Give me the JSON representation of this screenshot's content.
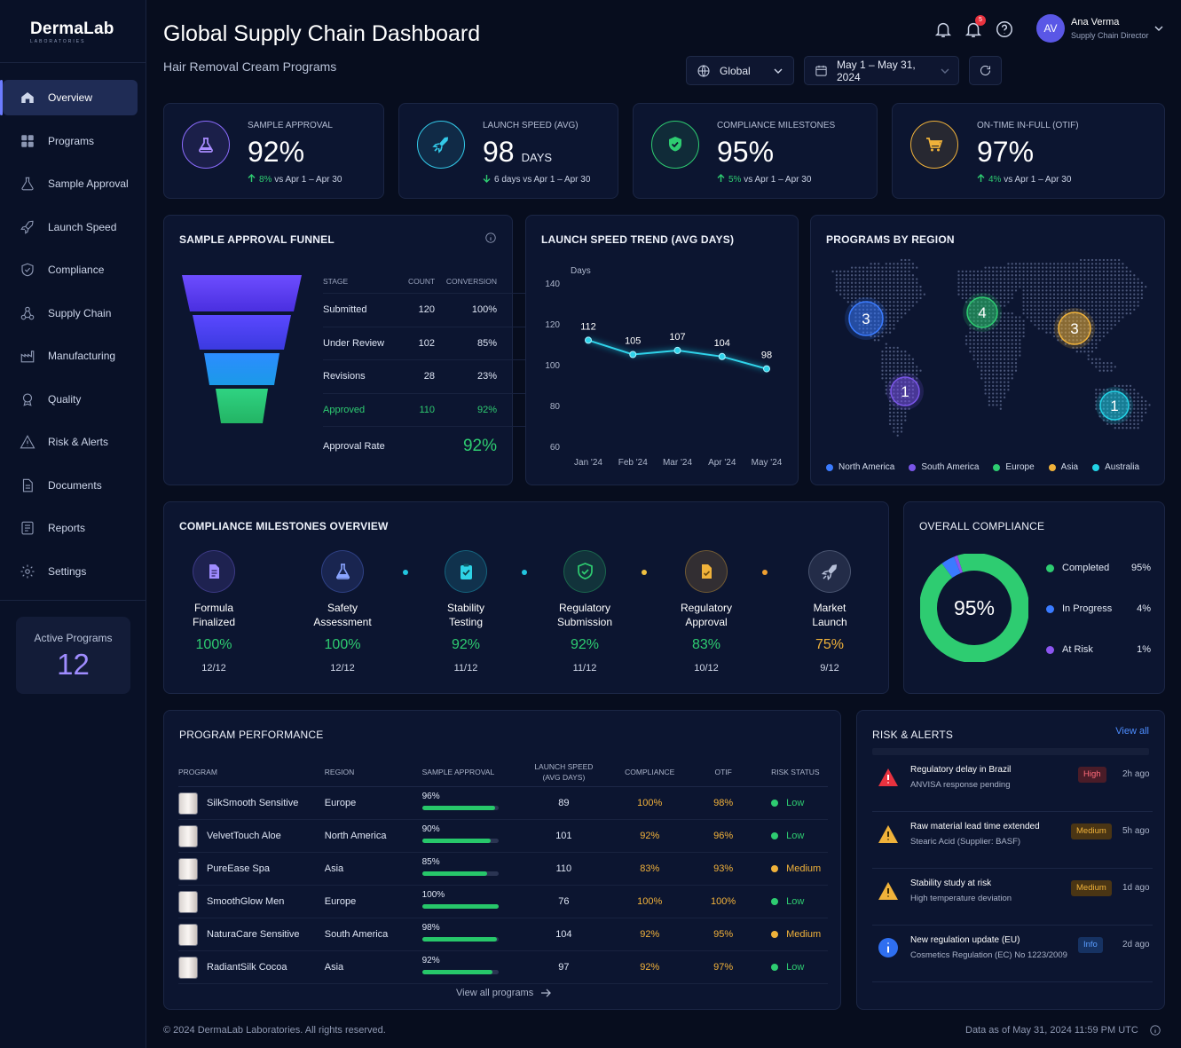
{
  "brand": {
    "name": "DermaLab",
    "sub": "LABORATORIES"
  },
  "nav": [
    {
      "label": "Overview",
      "icon": "home-icon"
    },
    {
      "label": "Programs",
      "icon": "grid-icon"
    },
    {
      "label": "Sample Approval",
      "icon": "flask-icon"
    },
    {
      "label": "Launch Speed",
      "icon": "rocket-icon"
    },
    {
      "label": "Compliance",
      "icon": "shield-icon"
    },
    {
      "label": "Supply Chain",
      "icon": "network-icon"
    },
    {
      "label": "Manufacturing",
      "icon": "factory-icon"
    },
    {
      "label": "Quality",
      "icon": "badge-icon"
    },
    {
      "label": "Risk & Alerts",
      "icon": "warning-icon"
    },
    {
      "label": "Documents",
      "icon": "document-icon"
    },
    {
      "label": "Reports",
      "icon": "report-icon"
    },
    {
      "label": "Settings",
      "icon": "gear-icon"
    }
  ],
  "active_programs": {
    "label": "Active Programs",
    "value": "12"
  },
  "header": {
    "title": "Global Supply Chain Dashboard",
    "subtitle": "Hair Removal Cream Programs",
    "notification_count": "5",
    "user_initials": "AV",
    "user_name": "Ana Verma",
    "user_role": "Supply Chain Director",
    "region": "Global",
    "date_range": "May 1 – May 31, 2024"
  },
  "kpis": [
    {
      "label": "SAMPLE APPROVAL",
      "value": "92%",
      "unit": "",
      "delta": "8%",
      "delta_text": "vs Apr 1 – Apr 30",
      "direction": "up",
      "color": "#8c6cff"
    },
    {
      "label": "LAUNCH SPEED (AVG)",
      "value": "98",
      "unit": "DAYS",
      "delta": "6 days",
      "delta_text": "vs Apr 1 – Apr 30",
      "direction": "down",
      "color": "#33c9e8"
    },
    {
      "label": "COMPLIANCE MILESTONES",
      "value": "95%",
      "unit": "",
      "delta": "5%",
      "delta_text": "vs Apr 1 – Apr 30",
      "direction": "up",
      "color": "#2ecc71"
    },
    {
      "label": "ON-TIME IN-FULL (OTIF)",
      "value": "97%",
      "unit": "",
      "delta": "4%",
      "delta_text": "vs Apr 1 – Apr 30",
      "direction": "up",
      "color": "#f0b23a"
    }
  ],
  "funnel": {
    "title": "SAMPLE APPROVAL FUNNEL",
    "headers": [
      "STAGE",
      "COUNT",
      "CONVERSION"
    ],
    "rows": [
      {
        "stage": "Submitted",
        "count": "120",
        "conv": "100%"
      },
      {
        "stage": "Under Review",
        "count": "102",
        "conv": "85%"
      },
      {
        "stage": "Revisions",
        "count": "28",
        "conv": "23%"
      },
      {
        "stage": "Approved",
        "count": "110",
        "conv": "92%"
      }
    ],
    "rate_label": "Approval Rate",
    "rate": "92%"
  },
  "trend": {
    "title": "LAUNCH SPEED TREND (AVG DAYS)",
    "ylabel": "Days"
  },
  "chart_data": {
    "type": "line",
    "title": "LAUNCH SPEED TREND (AVG DAYS)",
    "ylabel": "Days",
    "categories": [
      "Jan '24",
      "Feb '24",
      "Mar '24",
      "Apr '24",
      "May '24"
    ],
    "values": [
      112,
      105,
      107,
      104,
      98
    ],
    "ylim": [
      60,
      140
    ],
    "yticks": [
      60,
      80,
      100,
      120,
      140
    ]
  },
  "regions": {
    "title": "PROGRAMS BY REGION",
    "items": [
      {
        "name": "North America",
        "count": "3",
        "color": "#3a7bff"
      },
      {
        "name": "South America",
        "count": "1",
        "color": "#7a55e8"
      },
      {
        "name": "Europe",
        "count": "4",
        "color": "#2ecc71"
      },
      {
        "name": "Asia",
        "count": "3",
        "color": "#f0b23a"
      },
      {
        "name": "Australia",
        "count": "1",
        "color": "#22d3e6"
      }
    ]
  },
  "milestones": {
    "title": "COMPLIANCE MILESTONES OVERVIEW",
    "items": [
      {
        "name1": "Formula",
        "name2": "Finalized",
        "pct": "100%",
        "count": "12/12",
        "color": "#2ecc71",
        "icon": "document-icon"
      },
      {
        "name1": "Safety",
        "name2": "Assessment",
        "pct": "100%",
        "count": "12/12",
        "color": "#2ecc71",
        "icon": "flask-icon"
      },
      {
        "name1": "Stability",
        "name2": "Testing",
        "pct": "92%",
        "count": "11/12",
        "color": "#2ecc71",
        "icon": "clipboard-icon"
      },
      {
        "name1": "Regulatory",
        "name2": "Submission",
        "pct": "92%",
        "count": "11/12",
        "color": "#2ecc71",
        "icon": "shield-icon"
      },
      {
        "name1": "Regulatory",
        "name2": "Approval",
        "pct": "83%",
        "count": "10/12",
        "color": "#2ecc71",
        "icon": "file-check-icon"
      },
      {
        "name1": "Market",
        "name2": "Launch",
        "pct": "75%",
        "count": "9/12",
        "color": "#f0b23a",
        "icon": "rocket-icon"
      }
    ]
  },
  "overall": {
    "title": "OVERALL COMPLIANCE",
    "center": "95%",
    "items": [
      {
        "label": "Completed",
        "value": "95%",
        "color": "#2ecc71"
      },
      {
        "label": "In Progress",
        "value": "4%",
        "color": "#3a7bff"
      },
      {
        "label": "At Risk",
        "value": "1%",
        "color": "#8c55f0"
      }
    ]
  },
  "performance": {
    "title": "PROGRAM PERFORMANCE",
    "headers": [
      "PROGRAM",
      "REGION",
      "SAMPLE APPROVAL",
      "LAUNCH SPEED (AVG DAYS)",
      "COMPLIANCE",
      "OTIF",
      "RISK STATUS"
    ],
    "rows": [
      {
        "program": "SilkSmooth Sensitive",
        "region": "Europe",
        "approval": "96%",
        "approval_frac": 0.96,
        "speed": "89",
        "compliance": "100%",
        "otif": "98%",
        "risk": "Low"
      },
      {
        "program": "VelvetTouch Aloe",
        "region": "North America",
        "approval": "90%",
        "approval_frac": 0.9,
        "speed": "101",
        "compliance": "92%",
        "otif": "96%",
        "risk": "Low"
      },
      {
        "program": "PureEase Spa",
        "region": "Asia",
        "approval": "85%",
        "approval_frac": 0.85,
        "speed": "110",
        "compliance": "83%",
        "otif": "93%",
        "risk": "Medium"
      },
      {
        "program": "SmoothGlow Men",
        "region": "Europe",
        "approval": "100%",
        "approval_frac": 1.0,
        "speed": "76",
        "compliance": "100%",
        "otif": "100%",
        "risk": "Low"
      },
      {
        "program": "NaturaCare Sensitive",
        "region": "South America",
        "approval": "98%",
        "approval_frac": 0.98,
        "speed": "104",
        "compliance": "92%",
        "otif": "95%",
        "risk": "Medium"
      },
      {
        "program": "RadiantSilk Cocoa",
        "region": "Asia",
        "approval": "92%",
        "approval_frac": 0.92,
        "speed": "97",
        "compliance": "92%",
        "otif": "97%",
        "risk": "Low"
      }
    ],
    "view_all": "View all programs"
  },
  "alerts": {
    "title": "RISK & ALERTS",
    "view_all": "View all",
    "items": [
      {
        "title": "Regulatory delay in Brazil",
        "sub": "ANVISA response pending",
        "tag": "High",
        "time": "2h ago",
        "icon": "alert-triangle-icon"
      },
      {
        "title": "Raw material lead time extended",
        "sub": "Stearic Acid (Supplier: BASF)",
        "tag": "Medium",
        "time": "5h ago",
        "icon": "warning-icon"
      },
      {
        "title": "Stability study at risk",
        "sub": "High temperature deviation",
        "tag": "Medium",
        "time": "1d ago",
        "icon": "warning-icon"
      },
      {
        "title": "New regulation update (EU)",
        "sub": "Cosmetics Regulation (EC) No 1223/2009",
        "tag": "Info",
        "time": "2d ago",
        "icon": "info-icon"
      }
    ]
  },
  "footer": {
    "copyright": "© 2024 DermaLab Laboratories. All rights reserved.",
    "data_as_of": "Data as of May 31, 2024 11:59 PM UTC"
  }
}
